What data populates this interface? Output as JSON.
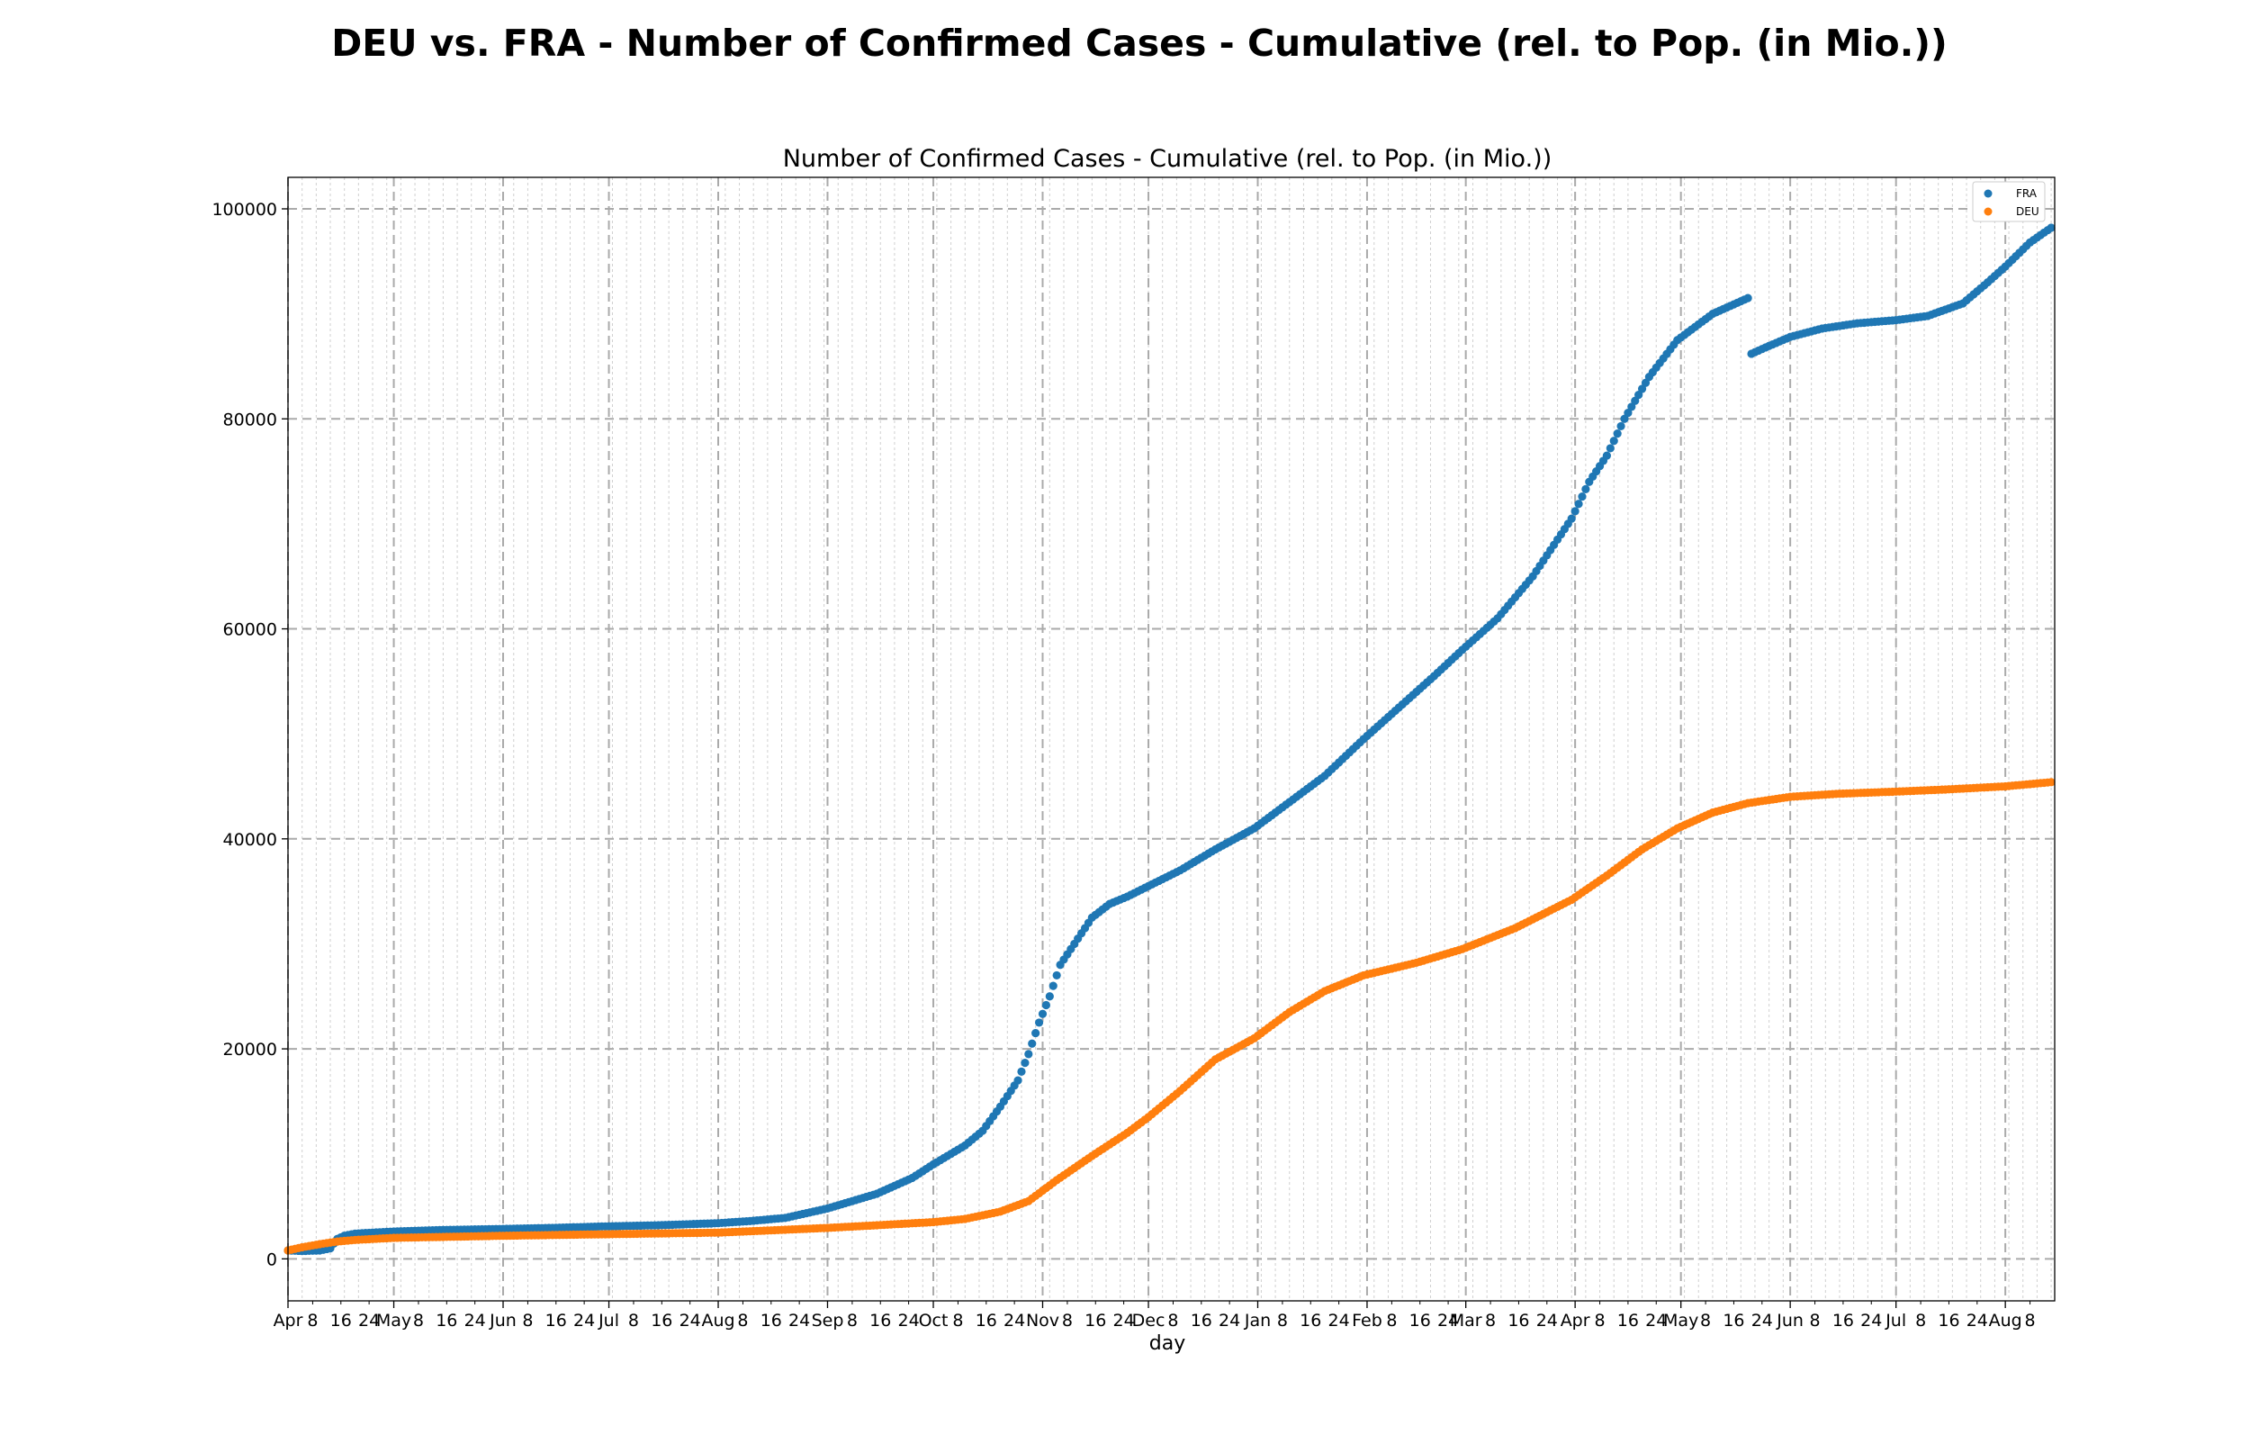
{
  "chart_data": {
    "type": "scatter",
    "suptitle": "DEU vs. FRA - Number of Confirmed Cases - Cumulative (rel. to Pop. (in Mio.))",
    "title": "Number of Confirmed Cases - Cumulative (rel. to Pop. (in Mio.))",
    "xlabel": "day",
    "ylabel": "",
    "x_start": "2020-04-01",
    "x_end": "2021-08-15",
    "ylim": [
      -4000,
      103000
    ],
    "y_ticks": [
      0,
      20000,
      40000,
      60000,
      80000,
      100000
    ],
    "y_tick_labels": [
      "0",
      "20000",
      "40000",
      "60000",
      "80000",
      "100000"
    ],
    "x_major_ticks": [
      {
        "date": "2020-04-01",
        "label": "Apr"
      },
      {
        "date": "2020-05-01",
        "label": "May"
      },
      {
        "date": "2020-06-01",
        "label": "Jun"
      },
      {
        "date": "2020-07-01",
        "label": "Jul"
      },
      {
        "date": "2020-08-01",
        "label": "Aug"
      },
      {
        "date": "2020-09-01",
        "label": "Sep"
      },
      {
        "date": "2020-10-01",
        "label": "Oct"
      },
      {
        "date": "2020-11-01",
        "label": "Nov"
      },
      {
        "date": "2020-12-01",
        "label": "Dec"
      },
      {
        "date": "2021-01-01",
        "label": "Jan"
      },
      {
        "date": "2021-02-01",
        "label": "Feb"
      },
      {
        "date": "2021-03-01",
        "label": "Mar"
      },
      {
        "date": "2021-04-01",
        "label": "Apr"
      },
      {
        "date": "2021-05-01",
        "label": "May"
      },
      {
        "date": "2021-06-01",
        "label": "Jun"
      },
      {
        "date": "2021-07-01",
        "label": "Jul"
      },
      {
        "date": "2021-08-01",
        "label": "Aug"
      }
    ],
    "x_minor_tick_days": [
      8,
      16,
      24
    ],
    "grid": true,
    "legend_position": "top-right",
    "series": [
      {
        "name": "FRA",
        "color": "#1f77b4",
        "points": [
          [
            "2020-04-01",
            800
          ],
          [
            "2020-04-05",
            750
          ],
          [
            "2020-04-10",
            800
          ],
          [
            "2020-04-13",
            1000
          ],
          [
            "2020-04-15",
            1900
          ],
          [
            "2020-04-17",
            2200
          ],
          [
            "2020-04-20",
            2400
          ],
          [
            "2020-04-25",
            2500
          ],
          [
            "2020-05-01",
            2600
          ],
          [
            "2020-05-15",
            2750
          ],
          [
            "2020-06-01",
            2850
          ],
          [
            "2020-06-15",
            2950
          ],
          [
            "2020-07-01",
            3100
          ],
          [
            "2020-07-15",
            3200
          ],
          [
            "2020-08-01",
            3400
          ],
          [
            "2020-08-10",
            3600
          ],
          [
            "2020-08-20",
            3900
          ],
          [
            "2020-09-01",
            4800
          ],
          [
            "2020-09-15",
            6200
          ],
          [
            "2020-09-25",
            7700
          ],
          [
            "2020-10-01",
            9000
          ],
          [
            "2020-10-10",
            10800
          ],
          [
            "2020-10-15",
            12200
          ],
          [
            "2020-10-20",
            14500
          ],
          [
            "2020-10-25",
            17000
          ],
          [
            "2020-10-28",
            19500
          ],
          [
            "2020-10-31",
            22500
          ],
          [
            "2020-11-03",
            25000
          ],
          [
            "2020-11-06",
            28000
          ],
          [
            "2020-11-10",
            30000
          ],
          [
            "2020-11-15",
            32500
          ],
          [
            "2020-11-20",
            33800
          ],
          [
            "2020-11-25",
            34500
          ],
          [
            "2020-12-01",
            35500
          ],
          [
            "2020-12-10",
            37000
          ],
          [
            "2020-12-20",
            39000
          ],
          [
            "2020-12-31",
            41000
          ],
          [
            "2021-01-10",
            43500
          ],
          [
            "2021-01-20",
            46000
          ],
          [
            "2021-01-31",
            49500
          ],
          [
            "2021-02-10",
            52500
          ],
          [
            "2021-02-20",
            55500
          ],
          [
            "2021-02-28",
            58000
          ],
          [
            "2021-03-10",
            61000
          ],
          [
            "2021-03-20",
            65000
          ],
          [
            "2021-03-31",
            70500
          ],
          [
            "2021-04-05",
            74000
          ],
          [
            "2021-04-10",
            76500
          ],
          [
            "2021-04-15",
            80000
          ],
          [
            "2021-04-22",
            84000
          ],
          [
            "2021-04-30",
            87500
          ],
          [
            "2021-05-10",
            90000
          ],
          [
            "2021-05-20",
            91500
          ],
          null,
          [
            "2021-05-21",
            86200
          ],
          [
            "2021-05-25",
            86800
          ],
          [
            "2021-06-01",
            87800
          ],
          [
            "2021-06-10",
            88600
          ],
          [
            "2021-06-20",
            89100
          ],
          [
            "2021-07-01",
            89400
          ],
          [
            "2021-07-10",
            89800
          ],
          [
            "2021-07-20",
            91000
          ],
          [
            "2021-07-27",
            93000
          ],
          [
            "2021-08-01",
            94500
          ],
          [
            "2021-08-08",
            96800
          ],
          [
            "2021-08-14",
            98200
          ]
        ]
      },
      {
        "name": "DEU",
        "color": "#ff7f0e",
        "points": [
          [
            "2020-04-01",
            800
          ],
          [
            "2020-04-05",
            1100
          ],
          [
            "2020-04-10",
            1400
          ],
          [
            "2020-04-15",
            1650
          ],
          [
            "2020-04-20",
            1800
          ],
          [
            "2020-05-01",
            2000
          ],
          [
            "2020-06-01",
            2200
          ],
          [
            "2020-07-01",
            2350
          ],
          [
            "2020-08-01",
            2500
          ],
          [
            "2020-08-15",
            2700
          ],
          [
            "2020-09-01",
            2950
          ],
          [
            "2020-09-15",
            3200
          ],
          [
            "2020-10-01",
            3500
          ],
          [
            "2020-10-10",
            3800
          ],
          [
            "2020-10-20",
            4500
          ],
          [
            "2020-10-28",
            5500
          ],
          [
            "2020-11-05",
            7500
          ],
          [
            "2020-11-15",
            9800
          ],
          [
            "2020-11-25",
            12000
          ],
          [
            "2020-12-01",
            13500
          ],
          [
            "2020-12-10",
            16000
          ],
          [
            "2020-12-20",
            19000
          ],
          [
            "2020-12-31",
            21000
          ],
          [
            "2021-01-10",
            23500
          ],
          [
            "2021-01-20",
            25500
          ],
          [
            "2021-01-31",
            27000
          ],
          [
            "2021-02-15",
            28200
          ],
          [
            "2021-02-28",
            29500
          ],
          [
            "2021-03-15",
            31500
          ],
          [
            "2021-03-31",
            34200
          ],
          [
            "2021-04-10",
            36500
          ],
          [
            "2021-04-20",
            39000
          ],
          [
            "2021-04-30",
            41000
          ],
          [
            "2021-05-10",
            42500
          ],
          [
            "2021-05-20",
            43400
          ],
          [
            "2021-06-01",
            44000
          ],
          [
            "2021-06-15",
            44300
          ],
          [
            "2021-07-01",
            44500
          ],
          [
            "2021-07-15",
            44700
          ],
          [
            "2021-08-01",
            45000
          ],
          [
            "2021-08-14",
            45400
          ]
        ]
      }
    ]
  }
}
